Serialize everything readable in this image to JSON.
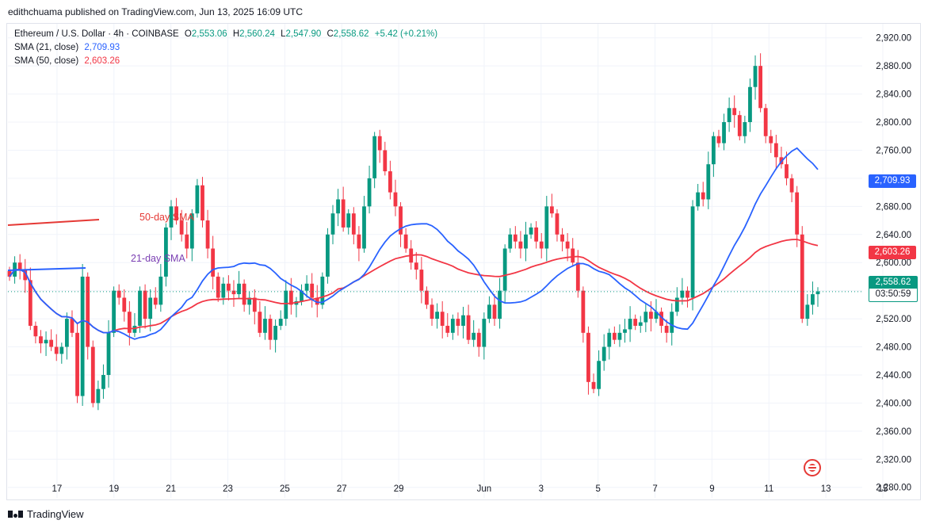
{
  "header": {
    "published": "edithchuama published on TradingView.com, Jun 13, 2025 16:09 UTC"
  },
  "legend": {
    "symbol": "Ethereum / U.S. Dollar · 4h · COINBASE",
    "open_label": "O",
    "open": "2,553.06",
    "high_label": "H",
    "high": "2,560.24",
    "low_label": "L",
    "low": "2,547.90",
    "close_label": "C",
    "close": "2,558.62",
    "change": "+5.42 (+0.21%)",
    "sma21_label": "SMA (21, close)",
    "sma21_value": "2,709.93",
    "sma50_label": "SMA (50, close)",
    "sma50_value": "2,603.26"
  },
  "tags": {
    "sma21": "2,709.93",
    "sma50": "2,603.26",
    "current_price": "2,558.62",
    "countdown": "03:50:59"
  },
  "footer": {
    "brand": "TradingView"
  },
  "colors": {
    "up": "#089981",
    "down": "#f23645",
    "sma21": "#2962ff",
    "sma50": "#f23645",
    "annot": "#e53935",
    "annot21": "#7b3fb3"
  },
  "chart_data": {
    "type": "candlestick",
    "title": "Ethereum / U.S. Dollar · 4h · COINBASE",
    "y_ticks": [
      2280,
      2320,
      2360,
      2400,
      2440,
      2480,
      2520,
      2560,
      2600,
      2640,
      2680,
      2720,
      2760,
      2800,
      2840,
      2880,
      2920
    ],
    "y_tick_labels": [
      "2,280.00",
      "2,320.00",
      "2,360.00",
      "2,400.00",
      "2,440.00",
      "2,480.00",
      "2,520.00",
      "2,560.00",
      "2,600.00",
      "2,640.00",
      "2,680.00",
      "2,720.00",
      "2,760.00",
      "2,800.00",
      "2,840.00",
      "2,880.00",
      "2,920.00"
    ],
    "ylim": [
      2265,
      2940
    ],
    "x_ticks": [
      {
        "label": "17",
        "day": "May 17"
      },
      {
        "label": "19",
        "day": "May 19"
      },
      {
        "label": "21",
        "day": "May 21"
      },
      {
        "label": "23",
        "day": "May 23"
      },
      {
        "label": "25",
        "day": "May 25"
      },
      {
        "label": "27",
        "day": "May 27"
      },
      {
        "label": "29",
        "day": "May 29"
      },
      {
        "label": "Jun",
        "day": "Jun 1"
      },
      {
        "label": "3",
        "day": "Jun 3"
      },
      {
        "label": "5",
        "day": "Jun 5"
      },
      {
        "label": "7",
        "day": "Jun 7"
      },
      {
        "label": "9",
        "day": "Jun 9"
      },
      {
        "label": "11",
        "day": "Jun 11"
      },
      {
        "label": "13",
        "day": "Jun 13"
      },
      {
        "label": "15",
        "day": "Jun 15"
      }
    ],
    "x_range_days": [
      "May 16",
      "Jun 15"
    ],
    "candles_close": [
      2580,
      2600,
      2590,
      2575,
      2510,
      2495,
      2485,
      2490,
      2480,
      2470,
      2480,
      2520,
      2500,
      2410,
      2580,
      2480,
      2400,
      2420,
      2440,
      2500,
      2560,
      2550,
      2530,
      2500,
      2510,
      2560,
      2520,
      2550,
      2540,
      2580,
      2650,
      2680,
      2660,
      2640,
      2620,
      2670,
      2710,
      2660,
      2620,
      2580,
      2550,
      2570,
      2560,
      2555,
      2570,
      2540,
      2550,
      2530,
      2500,
      2520,
      2490,
      2510,
      2520,
      2560,
      2540,
      2545,
      2560,
      2570,
      2550,
      2540,
      2580,
      2640,
      2670,
      2690,
      2650,
      2670,
      2640,
      2620,
      2680,
      2720,
      2780,
      2760,
      2730,
      2700,
      2680,
      2640,
      2620,
      2600,
      2590,
      2560,
      2540,
      2520,
      2530,
      2510,
      2500,
      2520,
      2510,
      2525,
      2490,
      2500,
      2480,
      2520,
      2540,
      2520,
      2560,
      2620,
      2640,
      2630,
      2620,
      2640,
      2650,
      2630,
      2620,
      2680,
      2670,
      2640,
      2630,
      2620,
      2600,
      2560,
      2500,
      2430,
      2420,
      2460,
      2480,
      2500,
      2490,
      2500,
      2505,
      2520,
      2510,
      2515,
      2530,
      2520,
      2530,
      2510,
      2500,
      2530,
      2550,
      2560,
      2550,
      2680,
      2700,
      2690,
      2740,
      2780,
      2770,
      2800,
      2820,
      2810,
      2780,
      2800,
      2850,
      2880,
      2820,
      2780,
      2770,
      2750,
      2740,
      2720,
      2700,
      2640,
      2520,
      2540,
      2555,
      2559
    ],
    "sma21": {
      "name": "SMA (21, close)",
      "last": 2709.93
    },
    "sma50": {
      "name": "SMA (50, close)",
      "last": 2603.26
    },
    "annotations": [
      "50-day SMA",
      "21-day SMA"
    ]
  }
}
